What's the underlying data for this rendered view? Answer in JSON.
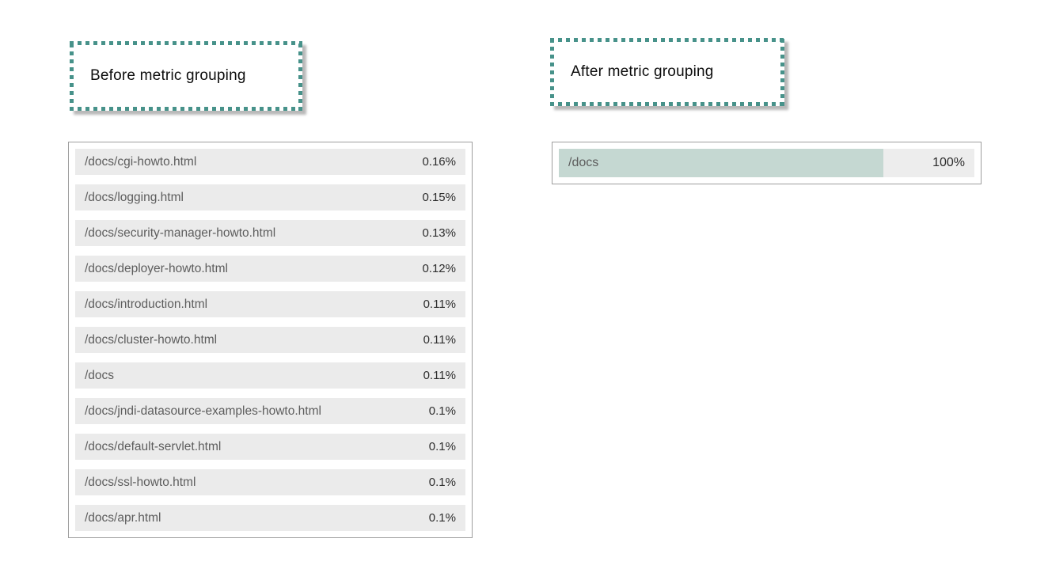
{
  "annotations": {
    "before_label": "Before metric grouping",
    "after_label": "After metric grouping"
  },
  "colors": {
    "accent_teal": "#47928a",
    "bar_fill": "#c5d8d2",
    "row_background": "#ebebeb",
    "panel_border": "#9e9e9e",
    "path_text": "#5d5d5d",
    "value_text": "#2d2d2d"
  },
  "before_table": {
    "rows": [
      {
        "path": "/docs/cgi-howto.html",
        "value": "0.16%"
      },
      {
        "path": "/docs/logging.html",
        "value": "0.15%"
      },
      {
        "path": "/docs/security-manager-howto.html",
        "value": "0.13%"
      },
      {
        "path": "/docs/deployer-howto.html",
        "value": "0.12%"
      },
      {
        "path": "/docs/introduction.html",
        "value": "0.11%"
      },
      {
        "path": "/docs/cluster-howto.html",
        "value": "0.11%"
      },
      {
        "path": "/docs",
        "value": "0.11%"
      },
      {
        "path": "/docs/jndi-datasource-examples-howto.html",
        "value": "0.1%"
      },
      {
        "path": "/docs/default-servlet.html",
        "value": "0.1%"
      },
      {
        "path": "/docs/ssl-howto.html",
        "value": "0.1%"
      },
      {
        "path": "/docs/apr.html",
        "value": "0.1%"
      }
    ]
  },
  "after_table": {
    "rows": [
      {
        "path": "/docs",
        "value": "100%",
        "fill_style": "width:78%"
      }
    ]
  },
  "chart_data": [
    {
      "type": "bar",
      "title": "Before metric grouping",
      "orientation": "horizontal",
      "unit": "%",
      "categories": [
        "/docs/cgi-howto.html",
        "/docs/logging.html",
        "/docs/security-manager-howto.html",
        "/docs/deployer-howto.html",
        "/docs/introduction.html",
        "/docs/cluster-howto.html",
        "/docs",
        "/docs/jndi-datasource-examples-howto.html",
        "/docs/default-servlet.html",
        "/docs/ssl-howto.html",
        "/docs/apr.html"
      ],
      "values": [
        0.16,
        0.15,
        0.13,
        0.12,
        0.11,
        0.11,
        0.11,
        0.1,
        0.1,
        0.1,
        0.1
      ],
      "xlabel": "",
      "ylabel": "",
      "legend": false,
      "grid": false
    },
    {
      "type": "bar",
      "title": "After metric grouping",
      "orientation": "horizontal",
      "unit": "%",
      "categories": [
        "/docs"
      ],
      "values": [
        100
      ],
      "xlabel": "",
      "ylabel": "",
      "legend": false,
      "grid": false
    }
  ]
}
